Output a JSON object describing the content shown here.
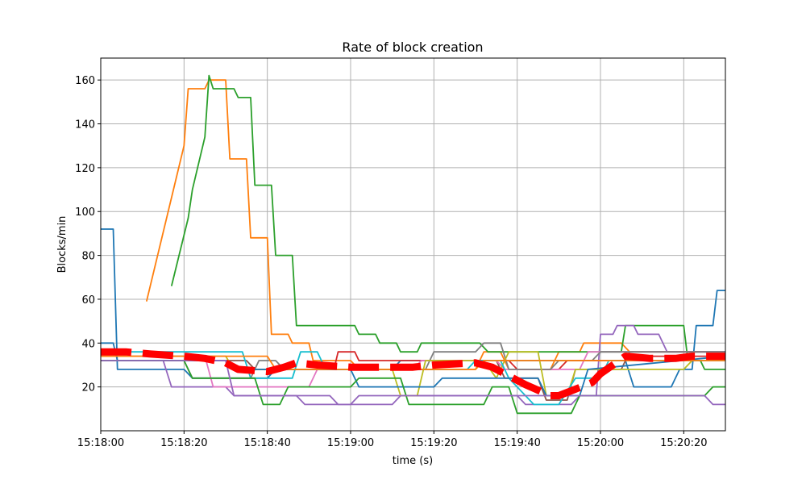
{
  "chart_data": {
    "type": "line",
    "title": "Rate of block creation",
    "xlabel": "time (s)",
    "ylabel": "Blocks/min",
    "xlim": [
      "15:18:00",
      "15:20:30"
    ],
    "ylim": [
      0,
      170
    ],
    "grid": true,
    "xticks": [
      "15:18:00",
      "15:18:20",
      "15:18:40",
      "15:19:00",
      "15:19:20",
      "15:19:40",
      "15:20:00",
      "15:20:20"
    ],
    "yticks": [
      20,
      40,
      60,
      80,
      100,
      120,
      140,
      160
    ],
    "series": [
      {
        "color": "#1f77b4",
        "points": [
          [
            "15:18:00",
            92
          ],
          [
            "15:18:03",
            92
          ],
          [
            "15:18:04",
            28
          ],
          [
            "15:18:20",
            28
          ],
          [
            "15:18:22",
            24
          ],
          [
            "15:18:40",
            24
          ],
          [
            "15:18:42",
            28
          ],
          [
            "15:19:10",
            28
          ],
          [
            "15:19:12",
            32
          ],
          [
            "15:20:06",
            32
          ],
          [
            "15:20:08",
            20
          ],
          [
            "15:20:17",
            20
          ],
          [
            "15:20:19",
            28
          ],
          [
            "15:20:22",
            28
          ],
          [
            "15:20:23",
            48
          ],
          [
            "15:20:27",
            48
          ],
          [
            "15:20:28",
            64
          ],
          [
            "15:20:30",
            64
          ]
        ]
      },
      {
        "color": "#ff7f0e",
        "points": [
          [
            "15:18:11",
            59
          ],
          [
            "15:18:20",
            130
          ],
          [
            "15:18:21",
            156
          ],
          [
            "15:18:25",
            156
          ],
          [
            "15:18:26",
            160
          ],
          [
            "15:18:30",
            160
          ],
          [
            "15:18:31",
            124
          ],
          [
            "15:18:35",
            124
          ],
          [
            "15:18:36",
            88
          ],
          [
            "15:18:40",
            88
          ],
          [
            "15:18:41",
            44
          ],
          [
            "15:18:45",
            44
          ],
          [
            "15:18:46",
            40
          ],
          [
            "15:18:50",
            40
          ],
          [
            "15:18:51",
            32
          ],
          [
            "15:19:00",
            32
          ],
          [
            "15:19:02",
            28
          ],
          [
            "15:19:30",
            28
          ],
          [
            "15:19:32",
            36
          ],
          [
            "15:19:36",
            36
          ],
          [
            "15:19:38",
            28
          ],
          [
            "15:19:48",
            28
          ],
          [
            "15:19:50",
            36
          ],
          [
            "15:19:55",
            36
          ],
          [
            "15:19:56",
            40
          ],
          [
            "15:20:05",
            40
          ],
          [
            "15:20:07",
            36
          ],
          [
            "15:20:30",
            36
          ]
        ]
      },
      {
        "color": "#2ca02c",
        "points": [
          [
            "15:18:17",
            66
          ],
          [
            "15:18:21",
            97
          ],
          [
            "15:18:22",
            110
          ],
          [
            "15:18:25",
            134
          ],
          [
            "15:18:26",
            162
          ],
          [
            "15:18:27",
            156
          ],
          [
            "15:18:32",
            156
          ],
          [
            "15:18:33",
            152
          ],
          [
            "15:18:36",
            152
          ],
          [
            "15:18:37",
            112
          ],
          [
            "15:18:41",
            112
          ],
          [
            "15:18:42",
            80
          ],
          [
            "15:18:46",
            80
          ],
          [
            "15:18:47",
            48
          ],
          [
            "15:19:01",
            48
          ],
          [
            "15:19:02",
            44
          ],
          [
            "15:19:06",
            44
          ],
          [
            "15:19:07",
            40
          ],
          [
            "15:19:11",
            40
          ],
          [
            "15:19:12",
            36
          ],
          [
            "15:19:16",
            36
          ],
          [
            "15:19:17",
            40
          ],
          [
            "15:19:31",
            40
          ],
          [
            "15:19:33",
            36
          ],
          [
            "15:20:05",
            36
          ],
          [
            "15:20:06",
            48
          ],
          [
            "15:20:20",
            48
          ],
          [
            "15:20:21",
            32
          ],
          [
            "15:20:24",
            32
          ],
          [
            "15:20:25",
            28
          ],
          [
            "15:20:30",
            28
          ]
        ]
      },
      {
        "color": "#d62728",
        "points": [
          [
            "15:18:00",
            32
          ],
          [
            "15:18:30",
            32
          ],
          [
            "15:18:32",
            28
          ],
          [
            "15:18:56",
            28
          ],
          [
            "15:18:57",
            36
          ],
          [
            "15:19:01",
            36
          ],
          [
            "15:19:02",
            32
          ],
          [
            "15:19:38",
            32
          ],
          [
            "15:19:40",
            28
          ],
          [
            "15:19:50",
            28
          ],
          [
            "15:19:52",
            32
          ],
          [
            "15:20:10",
            32
          ],
          [
            "15:20:12",
            34
          ],
          [
            "15:20:30",
            34
          ]
        ]
      },
      {
        "color": "#9467bd",
        "points": [
          [
            "15:18:00",
            32
          ],
          [
            "15:18:15",
            32
          ],
          [
            "15:18:17",
            20
          ],
          [
            "15:18:30",
            20
          ],
          [
            "15:18:32",
            16
          ],
          [
            "15:18:47",
            16
          ],
          [
            "15:18:49",
            12
          ],
          [
            "15:19:00",
            12
          ],
          [
            "15:19:02",
            16
          ],
          [
            "15:19:40",
            16
          ],
          [
            "15:19:42",
            12
          ],
          [
            "15:19:53",
            12
          ],
          [
            "15:19:55",
            16
          ],
          [
            "15:19:59",
            16
          ],
          [
            "15:20:00",
            44
          ],
          [
            "15:20:03",
            44
          ],
          [
            "15:20:04",
            48
          ],
          [
            "15:20:08",
            48
          ],
          [
            "15:20:09",
            44
          ],
          [
            "15:20:14",
            44
          ],
          [
            "15:20:16",
            36
          ],
          [
            "15:20:30",
            36
          ]
        ]
      },
      {
        "color": "#8c564b",
        "points": [
          [
            "15:18:00",
            32
          ],
          [
            "15:18:35",
            32
          ],
          [
            "15:18:37",
            28
          ],
          [
            "15:19:20",
            28
          ],
          [
            "15:19:22",
            32
          ],
          [
            "15:19:35",
            32
          ],
          [
            "15:19:37",
            24
          ],
          [
            "15:19:45",
            24
          ],
          [
            "15:19:47",
            14
          ],
          [
            "15:19:52",
            14
          ],
          [
            "15:19:54",
            28
          ],
          [
            "15:20:05",
            28
          ],
          [
            "15:20:07",
            36
          ],
          [
            "15:20:30",
            36
          ]
        ]
      },
      {
        "color": "#e377c2",
        "points": [
          [
            "15:18:00",
            34
          ],
          [
            "15:18:25",
            34
          ],
          [
            "15:18:27",
            20
          ],
          [
            "15:18:50",
            20
          ],
          [
            "15:18:52",
            28
          ],
          [
            "15:19:15",
            28
          ],
          [
            "15:19:17",
            32
          ],
          [
            "15:19:35",
            32
          ],
          [
            "15:19:37",
            28
          ],
          [
            "15:19:55",
            28
          ],
          [
            "15:19:57",
            36
          ],
          [
            "15:20:30",
            36
          ]
        ]
      },
      {
        "color": "#7f7f7f",
        "points": [
          [
            "15:18:00",
            32
          ],
          [
            "15:18:20",
            32
          ],
          [
            "15:18:22",
            24
          ],
          [
            "15:18:36",
            24
          ],
          [
            "15:18:38",
            32
          ],
          [
            "15:18:42",
            32
          ],
          [
            "15:18:44",
            28
          ],
          [
            "15:19:18",
            28
          ],
          [
            "15:19:20",
            36
          ],
          [
            "15:19:30",
            36
          ],
          [
            "15:19:32",
            40
          ],
          [
            "15:19:36",
            40
          ],
          [
            "15:19:38",
            28
          ],
          [
            "15:19:48",
            28
          ],
          [
            "15:19:50",
            32
          ],
          [
            "15:19:58",
            32
          ],
          [
            "15:20:00",
            36
          ],
          [
            "15:20:30",
            36
          ]
        ]
      },
      {
        "color": "#bcbd22",
        "points": [
          [
            "15:18:00",
            34
          ],
          [
            "15:18:30",
            34
          ],
          [
            "15:18:32",
            28
          ],
          [
            "15:19:10",
            28
          ],
          [
            "15:19:12",
            16
          ],
          [
            "15:19:16",
            16
          ],
          [
            "15:19:18",
            32
          ],
          [
            "15:19:32",
            32
          ],
          [
            "15:19:35",
            24
          ],
          [
            "15:19:38",
            36
          ],
          [
            "15:19:45",
            36
          ],
          [
            "15:19:47",
            16
          ],
          [
            "15:19:52",
            16
          ],
          [
            "15:19:54",
            28
          ],
          [
            "15:20:20",
            28
          ],
          [
            "15:20:22",
            32
          ],
          [
            "15:20:30",
            32
          ]
        ]
      },
      {
        "color": "#17becf",
        "points": [
          [
            "15:18:00",
            36
          ],
          [
            "15:18:34",
            36
          ],
          [
            "15:18:36",
            24
          ],
          [
            "15:18:46",
            24
          ],
          [
            "15:18:48",
            36
          ],
          [
            "15:18:52",
            36
          ],
          [
            "15:18:54",
            28
          ],
          [
            "15:19:28",
            28
          ],
          [
            "15:19:30",
            32
          ],
          [
            "15:19:36",
            32
          ],
          [
            "15:19:38",
            24
          ],
          [
            "15:19:44",
            12
          ],
          [
            "15:19:50",
            12
          ],
          [
            "15:19:54",
            24
          ],
          [
            "15:20:00",
            24
          ],
          [
            "15:20:02",
            32
          ],
          [
            "15:20:30",
            32
          ]
        ]
      },
      {
        "color": "#1f77b4",
        "points": [
          [
            "15:18:00",
            40
          ],
          [
            "15:18:03",
            40
          ],
          [
            "15:18:04",
            32
          ],
          [
            "15:18:30",
            32
          ],
          [
            "15:18:32",
            28
          ],
          [
            "15:19:00",
            28
          ],
          [
            "15:19:02",
            20
          ],
          [
            "15:19:20",
            20
          ],
          [
            "15:19:22",
            24
          ],
          [
            "15:19:45",
            24
          ],
          [
            "15:19:47",
            16
          ],
          [
            "15:19:55",
            16
          ],
          [
            "15:19:57",
            28
          ],
          [
            "15:20:30",
            34
          ]
        ]
      },
      {
        "color": "#ff7f0e",
        "points": [
          [
            "15:18:00",
            34
          ],
          [
            "15:18:40",
            34
          ],
          [
            "15:18:42",
            28
          ],
          [
            "15:19:30",
            28
          ],
          [
            "15:19:32",
            32
          ],
          [
            "15:20:30",
            32
          ]
        ]
      },
      {
        "color": "#2ca02c",
        "points": [
          [
            "15:18:00",
            32
          ],
          [
            "15:18:20",
            32
          ],
          [
            "15:18:22",
            24
          ],
          [
            "15:18:37",
            24
          ],
          [
            "15:18:39",
            12
          ],
          [
            "15:18:43",
            12
          ],
          [
            "15:18:45",
            20
          ],
          [
            "15:19:00",
            20
          ],
          [
            "15:19:02",
            24
          ],
          [
            "15:19:12",
            24
          ],
          [
            "15:19:14",
            12
          ],
          [
            "15:19:32",
            12
          ],
          [
            "15:19:34",
            20
          ],
          [
            "15:19:38",
            20
          ],
          [
            "15:19:40",
            8
          ],
          [
            "15:19:53",
            8
          ],
          [
            "15:19:55",
            16
          ],
          [
            "15:20:25",
            16
          ],
          [
            "15:20:27",
            20
          ],
          [
            "15:20:30",
            20
          ]
        ]
      },
      {
        "color": "#9467bd",
        "points": [
          [
            "15:18:00",
            32
          ],
          [
            "15:18:30",
            32
          ],
          [
            "15:18:32",
            16
          ],
          [
            "15:18:55",
            16
          ],
          [
            "15:18:57",
            12
          ],
          [
            "15:19:10",
            12
          ],
          [
            "15:19:12",
            16
          ],
          [
            "15:20:25",
            16
          ],
          [
            "15:20:27",
            12
          ],
          [
            "15:20:30",
            12
          ]
        ]
      }
    ],
    "mean_series": {
      "color": "#ff0000",
      "style": "dashed",
      "points": [
        [
          "15:18:00",
          36
        ],
        [
          "15:18:06",
          36
        ],
        [
          "15:18:12",
          35
        ],
        [
          "15:18:20",
          34
        ],
        [
          "15:18:25",
          33
        ],
        [
          "15:18:30",
          31
        ],
        [
          "15:18:33",
          28
        ],
        [
          "15:18:40",
          27
        ],
        [
          "15:18:44",
          29
        ],
        [
          "15:18:47",
          31
        ],
        [
          "15:18:52",
          30
        ],
        [
          "15:19:00",
          29
        ],
        [
          "15:19:10",
          29
        ],
        [
          "15:19:15",
          29
        ],
        [
          "15:19:20",
          30
        ],
        [
          "15:19:30",
          31
        ],
        [
          "15:19:34",
          29
        ],
        [
          "15:19:38",
          25
        ],
        [
          "15:19:42",
          21
        ],
        [
          "15:19:48",
          16
        ],
        [
          "15:19:50",
          16
        ],
        [
          "15:19:54",
          19
        ],
        [
          "15:19:58",
          22
        ],
        [
          "15:20:00",
          26
        ],
        [
          "15:20:03",
          30
        ],
        [
          "15:20:06",
          34
        ],
        [
          "15:20:12",
          33
        ],
        [
          "15:20:18",
          33
        ],
        [
          "15:20:22",
          34
        ],
        [
          "15:20:30",
          34
        ]
      ]
    }
  }
}
